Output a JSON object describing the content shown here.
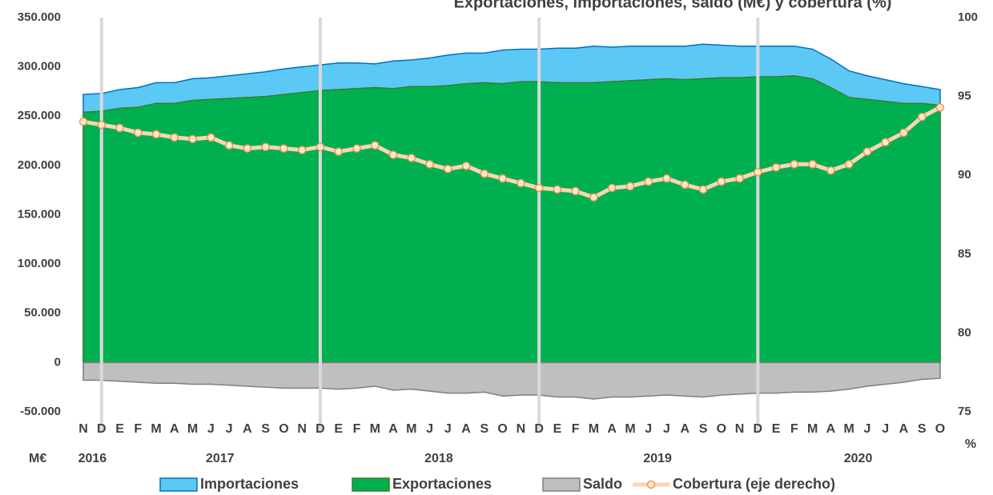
{
  "chart_data": {
    "type": "area",
    "title": "Exportaciones, importaciones, saldo (M€) y cobertura (%)",
    "y_unit": "M€",
    "y2_unit": "%",
    "categories": [
      "N",
      "D",
      "E",
      "F",
      "M",
      "A",
      "M",
      "J",
      "J",
      "A",
      "S",
      "O",
      "N",
      "D",
      "E",
      "F",
      "M",
      "A",
      "M",
      "J",
      "J",
      "A",
      "S",
      "O",
      "N",
      "D",
      "E",
      "F",
      "M",
      "A",
      "M",
      "J",
      "J",
      "A",
      "S",
      "O",
      "N",
      "D",
      "E",
      "F",
      "M",
      "A",
      "M",
      "J",
      "J",
      "A",
      "S",
      "O"
    ],
    "years": [
      "2016",
      "2017",
      "2018",
      "2019",
      "2020"
    ],
    "ylim": [
      -50000,
      350000
    ],
    "yticks": [
      {
        "value": -50000,
        "label": "-50.000"
      },
      0,
      {
        "value": 50000,
        "label": "50.000"
      },
      {
        "value": 100000,
        "label": "100.000"
      },
      {
        "value": 150000,
        "label": "150.000"
      },
      {
        "value": 200000,
        "label": "200.000"
      },
      {
        "value": 250000,
        "label": "250.000"
      },
      {
        "value": 300000,
        "label": "300.000"
      },
      {
        "value": 350000,
        "label": "350.000"
      }
    ],
    "y2lim": [
      75,
      100
    ],
    "y2ticks": [
      75,
      80,
      85,
      90,
      95,
      100
    ],
    "series": [
      {
        "name": "Importaciones",
        "color": "#5bc8f5",
        "stroke": "#0070c0",
        "values": [
          272000,
          273000,
          277000,
          279000,
          284000,
          284000,
          288000,
          289000,
          291000,
          293000,
          295000,
          298000,
          300000,
          302000,
          304000,
          304000,
          303000,
          306000,
          307000,
          309000,
          312000,
          314000,
          314000,
          317000,
          318000,
          318000,
          319000,
          319000,
          321000,
          320000,
          321000,
          321000,
          321000,
          321000,
          323000,
          322000,
          321000,
          321000,
          321000,
          321000,
          318000,
          308000,
          296000,
          291000,
          287000,
          283000,
          280000,
          277000
        ]
      },
      {
        "name": "Exportaciones",
        "color": "#00b050",
        "stroke": "#3a7d22",
        "values": [
          254000,
          255000,
          258000,
          259000,
          263000,
          263000,
          266000,
          267000,
          268000,
          269000,
          270000,
          272000,
          274000,
          276000,
          277000,
          278000,
          279000,
          278000,
          280000,
          280000,
          281000,
          283000,
          284000,
          283000,
          285000,
          285000,
          284000,
          284000,
          284000,
          285000,
          286000,
          287000,
          288000,
          287000,
          288000,
          289000,
          289000,
          290000,
          290000,
          291000,
          288000,
          279000,
          269000,
          267000,
          265000,
          263000,
          263000,
          261000
        ]
      },
      {
        "name": "Saldo",
        "color": "#bfbfbf",
        "stroke": "#7f7f7f",
        "values": [
          -18000,
          -18000,
          -19000,
          -20000,
          -21000,
          -21000,
          -22000,
          -22000,
          -23000,
          -24000,
          -25000,
          -26000,
          -26000,
          -26000,
          -27000,
          -26000,
          -24000,
          -28000,
          -27000,
          -29000,
          -31000,
          -31000,
          -30000,
          -34000,
          -33000,
          -33000,
          -35000,
          -35000,
          -37000,
          -35000,
          -35000,
          -34000,
          -33000,
          -34000,
          -35000,
          -33000,
          -32000,
          -31000,
          -31000,
          -30000,
          -30000,
          -29000,
          -27000,
          -24000,
          -22000,
          -20000,
          -17000,
          -16000
        ]
      },
      {
        "name": "Cobertura (eje derecho)",
        "color": "#fcd5b4",
        "marker": "#f79646",
        "axis": "y2",
        "values": [
          93.4,
          93.2,
          93.0,
          92.7,
          92.6,
          92.4,
          92.3,
          92.4,
          91.9,
          91.7,
          91.8,
          91.7,
          91.6,
          91.8,
          91.5,
          91.7,
          91.9,
          91.3,
          91.1,
          90.7,
          90.4,
          90.6,
          90.1,
          89.8,
          89.5,
          89.2,
          89.1,
          89.0,
          88.6,
          89.2,
          89.3,
          89.6,
          89.8,
          89.4,
          89.1,
          89.6,
          89.8,
          90.2,
          90.5,
          90.7,
          90.7,
          90.3,
          90.7,
          91.5,
          92.1,
          92.7,
          93.7,
          94.3
        ]
      }
    ]
  }
}
